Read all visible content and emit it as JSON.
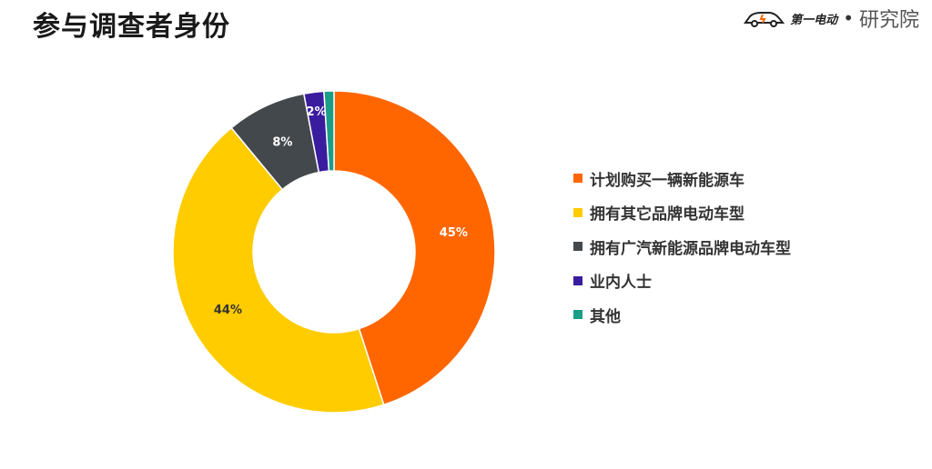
{
  "header": {
    "title": "参与调查者身份",
    "brand_name": "第一电动",
    "brand_suffix": "研究院",
    "brand_separator": "•"
  },
  "chart_data": {
    "type": "pie",
    "subtype": "donut",
    "title": "参与调查者身份",
    "legend_position": "right",
    "categories": [
      "计划购买一辆新能源车",
      "拥有其它品牌电动车型",
      "拥有广汽新能源品牌电动车型",
      "业内人士",
      "其他"
    ],
    "values": [
      45,
      44,
      8,
      2,
      1
    ],
    "labels": [
      "45%",
      "44%",
      "8%",
      "2%",
      ""
    ],
    "colors": [
      "#FF6600",
      "#FFCC00",
      "#43484C",
      "#3A1D9E",
      "#1B9E87"
    ],
    "label_colors": [
      "#ffffff",
      "#333333",
      "#ffffff",
      "#ffffff",
      "#ffffff"
    ]
  }
}
